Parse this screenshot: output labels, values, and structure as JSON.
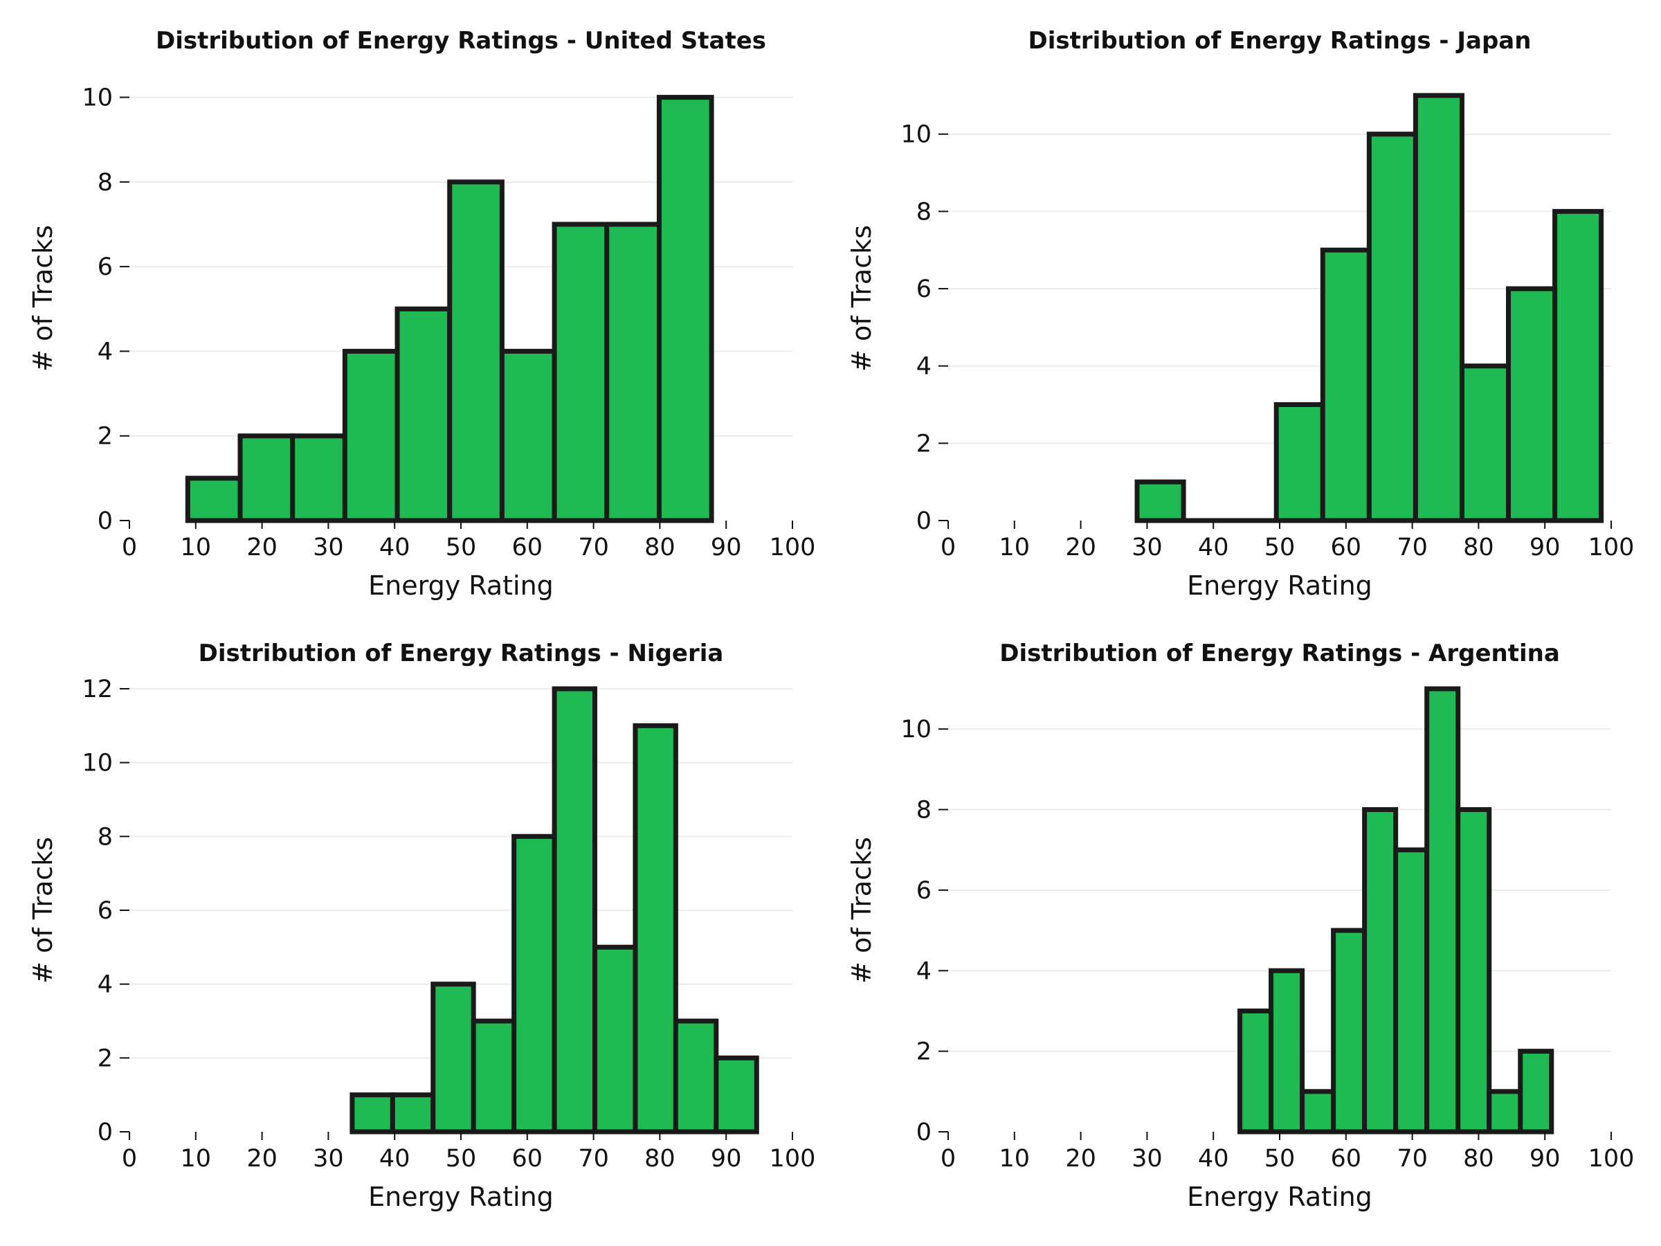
{
  "chart_data": [
    {
      "type": "bar",
      "title": "Distribution of Energy Ratings - United States",
      "xlabel": "Energy Rating",
      "ylabel": "# of Tracks",
      "xlim": [
        0,
        100
      ],
      "xticks": [
        0,
        10,
        20,
        30,
        40,
        50,
        60,
        70,
        80,
        90,
        100
      ],
      "ylim": [
        0,
        10.5
      ],
      "yticks": [
        0,
        2,
        4,
        6,
        8,
        10
      ],
      "grid": "horizontal",
      "bar_color": "#1fba54",
      "bins": [
        {
          "x0": 8.8,
          "x1": 16.7,
          "count": 1
        },
        {
          "x0": 16.7,
          "x1": 24.6,
          "count": 2
        },
        {
          "x0": 24.6,
          "x1": 32.5,
          "count": 2
        },
        {
          "x0": 32.5,
          "x1": 40.4,
          "count": 4
        },
        {
          "x0": 40.4,
          "x1": 48.3,
          "count": 5
        },
        {
          "x0": 48.3,
          "x1": 56.2,
          "count": 8
        },
        {
          "x0": 56.2,
          "x1": 64.1,
          "count": 4
        },
        {
          "x0": 64.1,
          "x1": 72.0,
          "count": 7
        },
        {
          "x0": 72.0,
          "x1": 79.9,
          "count": 7
        },
        {
          "x0": 79.9,
          "x1": 87.8,
          "count": 10
        }
      ]
    },
    {
      "type": "bar",
      "title": "Distribution of Energy Ratings - Japan",
      "xlabel": "Energy Rating",
      "ylabel": "# of Tracks",
      "xlim": [
        0,
        100
      ],
      "xticks": [
        0,
        10,
        20,
        30,
        40,
        50,
        60,
        70,
        80,
        90,
        100
      ],
      "ylim": [
        0,
        11.5
      ],
      "yticks": [
        0,
        2,
        4,
        6,
        8,
        10
      ],
      "grid": "horizontal",
      "bar_color": "#1fba54",
      "bins": [
        {
          "x0": 28.5,
          "x1": 35.5,
          "count": 1
        },
        {
          "x0": 35.5,
          "x1": 42.5,
          "count": 0
        },
        {
          "x0": 42.5,
          "x1": 49.5,
          "count": 0
        },
        {
          "x0": 49.5,
          "x1": 56.5,
          "count": 3
        },
        {
          "x0": 56.5,
          "x1": 63.5,
          "count": 7
        },
        {
          "x0": 63.5,
          "x1": 70.5,
          "count": 10
        },
        {
          "x0": 70.5,
          "x1": 77.5,
          "count": 11
        },
        {
          "x0": 77.5,
          "x1": 84.5,
          "count": 4
        },
        {
          "x0": 84.5,
          "x1": 91.5,
          "count": 6
        },
        {
          "x0": 91.5,
          "x1": 98.5,
          "count": 8
        }
      ]
    },
    {
      "type": "bar",
      "title": "Distribution of Energy Ratings - Nigeria",
      "xlabel": "Energy Rating",
      "ylabel": "# of Tracks",
      "xlim": [
        0,
        100
      ],
      "xticks": [
        0,
        10,
        20,
        30,
        40,
        50,
        60,
        70,
        80,
        90,
        100
      ],
      "ylim": [
        0,
        12.0
      ],
      "yticks": [
        0,
        2,
        4,
        6,
        8,
        10,
        12
      ],
      "grid": "horizontal",
      "bar_color": "#1fba54",
      "bins": [
        {
          "x0": 33.6,
          "x1": 39.7,
          "count": 1
        },
        {
          "x0": 39.7,
          "x1": 45.8,
          "count": 1
        },
        {
          "x0": 45.8,
          "x1": 51.9,
          "count": 4
        },
        {
          "x0": 51.9,
          "x1": 58.0,
          "count": 3
        },
        {
          "x0": 58.0,
          "x1": 64.1,
          "count": 8
        },
        {
          "x0": 64.1,
          "x1": 70.2,
          "count": 12
        },
        {
          "x0": 70.2,
          "x1": 76.3,
          "count": 5
        },
        {
          "x0": 76.3,
          "x1": 82.4,
          "count": 11
        },
        {
          "x0": 82.4,
          "x1": 88.5,
          "count": 3
        },
        {
          "x0": 88.5,
          "x1": 94.6,
          "count": 2
        }
      ]
    },
    {
      "type": "bar",
      "title": "Distribution of Energy Ratings - Argentina",
      "xlabel": "Energy Rating",
      "ylabel": "# of Tracks",
      "xlim": [
        0,
        100
      ],
      "xticks": [
        0,
        10,
        20,
        30,
        40,
        50,
        60,
        70,
        80,
        90,
        100
      ],
      "ylim": [
        0,
        11.0
      ],
      "yticks": [
        0,
        2,
        4,
        6,
        8,
        10
      ],
      "grid": "horizontal",
      "bar_color": "#1fba54",
      "bins": [
        {
          "x0": 44.0,
          "x1": 48.7,
          "count": 3
        },
        {
          "x0": 48.7,
          "x1": 53.4,
          "count": 4
        },
        {
          "x0": 53.4,
          "x1": 58.1,
          "count": 1
        },
        {
          "x0": 58.1,
          "x1": 62.8,
          "count": 5
        },
        {
          "x0": 62.8,
          "x1": 67.5,
          "count": 8
        },
        {
          "x0": 67.5,
          "x1": 72.2,
          "count": 7
        },
        {
          "x0": 72.2,
          "x1": 76.9,
          "count": 11
        },
        {
          "x0": 76.9,
          "x1": 81.6,
          "count": 8
        },
        {
          "x0": 81.6,
          "x1": 86.3,
          "count": 1
        },
        {
          "x0": 86.3,
          "x1": 91.0,
          "count": 2
        }
      ]
    }
  ]
}
